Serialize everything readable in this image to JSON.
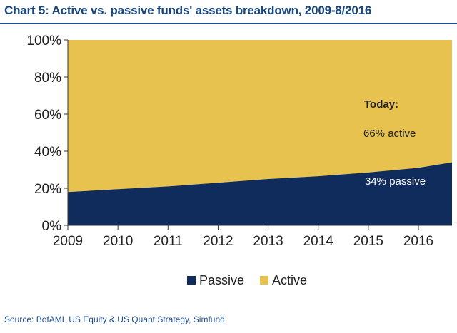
{
  "title": "Chart 5: Active vs. passive funds' assets breakdown, 2009-8/2016",
  "source": "Source: BofAML US Equity & US Quant Strategy, Simfund",
  "colors": {
    "passive": "#0f2c5c",
    "active": "#e8c24f",
    "title": "#17457d",
    "axis": "#333333",
    "annotation_dark": "#222222",
    "annotation_light": "#ffffff"
  },
  "chart_data": {
    "type": "area",
    "stacked": true,
    "x": [
      2009,
      2010,
      2011,
      2012,
      2013,
      2014,
      2015,
      2016,
      2016.67
    ],
    "x_tick_labels": [
      "2009",
      "2010",
      "2011",
      "2012",
      "2013",
      "2014",
      "2015",
      "2016"
    ],
    "y_tick_labels": [
      "0%",
      "20%",
      "40%",
      "60%",
      "80%",
      "100%"
    ],
    "ylim": [
      0,
      100
    ],
    "series": [
      {
        "name": "Passive",
        "values": [
          18,
          19.5,
          21,
          23,
          25,
          26.5,
          28.5,
          31,
          34
        ]
      },
      {
        "name": "Active",
        "values": [
          82,
          80.5,
          79,
          77,
          75,
          73.5,
          71.5,
          69,
          66
        ]
      }
    ],
    "annotations": [
      {
        "text": "Today:",
        "bold": true
      },
      {
        "text": "66% active",
        "bold": false
      },
      {
        "text": "34% passive",
        "bold": false
      }
    ],
    "legend": [
      "Passive",
      "Active"
    ],
    "legend_position": "bottom",
    "grid": false
  }
}
